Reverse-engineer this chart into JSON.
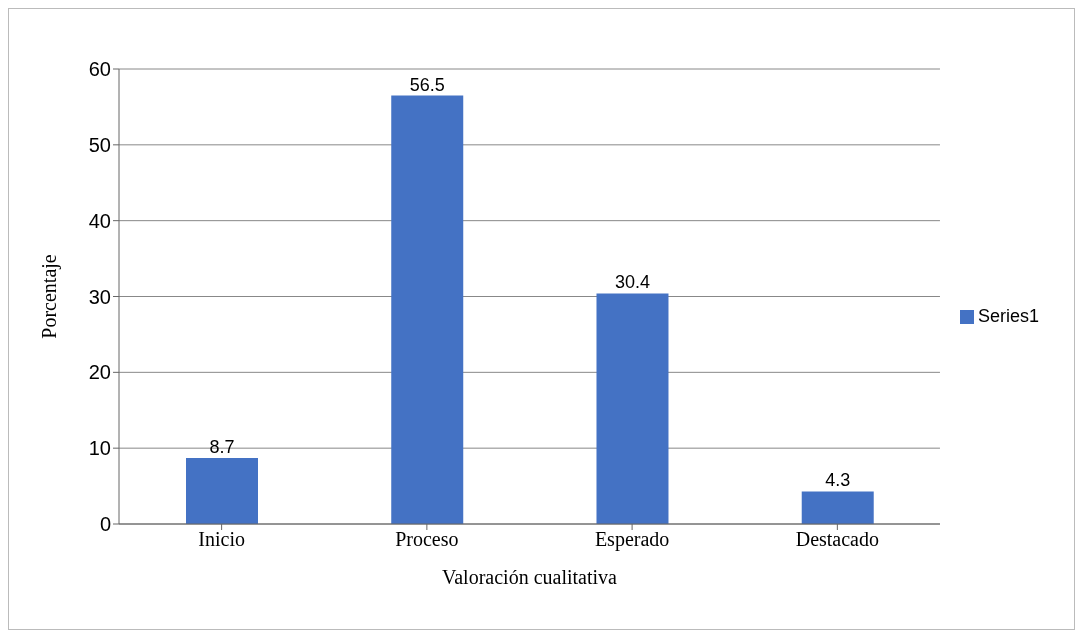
{
  "chart_data": {
    "type": "bar",
    "xlabel": "Valoración cualitativa",
    "ylabel": "Porcentaje",
    "categories": [
      "Inicio",
      "Proceso",
      "Esperado",
      "Destacado"
    ],
    "series": [
      {
        "name": "Series1",
        "color": "#4472c4",
        "values": [
          8.7,
          56.5,
          30.4,
          4.3
        ]
      }
    ],
    "ylim": [
      0,
      60
    ],
    "yticks": [
      0,
      10,
      20,
      30,
      40,
      50,
      60
    ],
    "grid": "y",
    "legend": "right",
    "data_labels": true
  }
}
